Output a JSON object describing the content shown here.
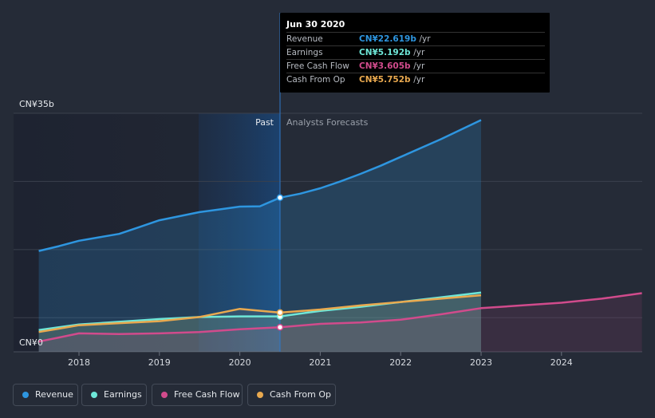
{
  "chart_data": {
    "type": "area",
    "y_axis": {
      "top_label": "CN¥35b",
      "bottom_label": "CN¥0",
      "ylim": [
        0,
        35
      ]
    },
    "x_ticks": [
      "2018",
      "2019",
      "2020",
      "2021",
      "2022",
      "2023",
      "2024"
    ],
    "xlim": [
      2017.5,
      2025.0
    ],
    "divider_year": 2020.5,
    "past_label": "Past",
    "forecast_label": "Analysts Forecasts",
    "series": [
      {
        "name": "Revenue",
        "key": "revenue",
        "color": "#2e96e0",
        "points": [
          [
            2017.5,
            14.8
          ],
          [
            2017.75,
            15.5
          ],
          [
            2018.0,
            16.3
          ],
          [
            2018.25,
            16.8
          ],
          [
            2018.5,
            17.3
          ],
          [
            2018.75,
            18.3
          ],
          [
            2019.0,
            19.3
          ],
          [
            2019.25,
            19.9
          ],
          [
            2019.5,
            20.5
          ],
          [
            2019.75,
            20.9
          ],
          [
            2020.0,
            21.3
          ],
          [
            2020.25,
            21.35
          ],
          [
            2020.5,
            22.619
          ],
          [
            2020.75,
            23.2
          ],
          [
            2021.0,
            24.0
          ],
          [
            2021.25,
            25.0
          ],
          [
            2021.5,
            26.1
          ],
          [
            2021.75,
            27.3
          ],
          [
            2022.0,
            28.6
          ],
          [
            2022.5,
            31.2
          ],
          [
            2023.0,
            34.0
          ]
        ]
      },
      {
        "name": "Earnings",
        "key": "earnings",
        "color": "#6ee7d8",
        "points": [
          [
            2017.5,
            3.2
          ],
          [
            2017.75,
            3.6
          ],
          [
            2018.0,
            4.0
          ],
          [
            2018.5,
            4.4
          ],
          [
            2019.0,
            4.8
          ],
          [
            2019.5,
            5.1
          ],
          [
            2020.0,
            5.2
          ],
          [
            2020.5,
            5.192
          ],
          [
            2021.0,
            6.0
          ],
          [
            2021.5,
            6.6
          ],
          [
            2022.0,
            7.3
          ],
          [
            2022.5,
            8.0
          ],
          [
            2023.0,
            8.7
          ]
        ]
      },
      {
        "name": "Free Cash Flow",
        "key": "fcf",
        "color": "#d14b8c",
        "points": [
          [
            2017.5,
            1.5
          ],
          [
            2017.75,
            2.1
          ],
          [
            2018.0,
            2.7
          ],
          [
            2018.5,
            2.6
          ],
          [
            2019.0,
            2.7
          ],
          [
            2019.5,
            2.9
          ],
          [
            2020.0,
            3.3
          ],
          [
            2020.5,
            3.605
          ],
          [
            2021.0,
            4.1
          ],
          [
            2021.5,
            4.3
          ],
          [
            2022.0,
            4.7
          ],
          [
            2022.5,
            5.5
          ],
          [
            2023.0,
            6.4
          ],
          [
            2023.5,
            6.8
          ],
          [
            2024.0,
            7.2
          ],
          [
            2024.5,
            7.8
          ],
          [
            2025.0,
            8.6
          ]
        ]
      },
      {
        "name": "Cash From Op",
        "key": "cfo",
        "color": "#e9a94f",
        "points": [
          [
            2017.5,
            2.9
          ],
          [
            2017.75,
            3.4
          ],
          [
            2018.0,
            3.9
          ],
          [
            2018.5,
            4.2
          ],
          [
            2019.0,
            4.5
          ],
          [
            2019.5,
            5.1
          ],
          [
            2019.75,
            5.7
          ],
          [
            2020.0,
            6.3
          ],
          [
            2020.5,
            5.752
          ],
          [
            2021.0,
            6.2
          ],
          [
            2021.5,
            6.8
          ],
          [
            2022.0,
            7.3
          ],
          [
            2022.5,
            7.8
          ],
          [
            2023.0,
            8.3
          ]
        ]
      }
    ]
  },
  "tooltip": {
    "date": "Jun 30 2020",
    "rows": [
      {
        "label": "Revenue",
        "value": "CN¥22.619b",
        "unit": "/yr",
        "color": "#2e96e0"
      },
      {
        "label": "Earnings",
        "value": "CN¥5.192b",
        "unit": "/yr",
        "color": "#6ee7d8"
      },
      {
        "label": "Free Cash Flow",
        "value": "CN¥3.605b",
        "unit": "/yr",
        "color": "#d14b8c"
      },
      {
        "label": "Cash From Op",
        "value": "CN¥5.752b",
        "unit": "/yr",
        "color": "#e9a94f"
      }
    ]
  },
  "legend": [
    {
      "label": "Revenue",
      "color": "#2e96e0"
    },
    {
      "label": "Earnings",
      "color": "#6ee7d8"
    },
    {
      "label": "Free Cash Flow",
      "color": "#d14b8c"
    },
    {
      "label": "Cash From Op",
      "color": "#e9a94f"
    }
  ]
}
